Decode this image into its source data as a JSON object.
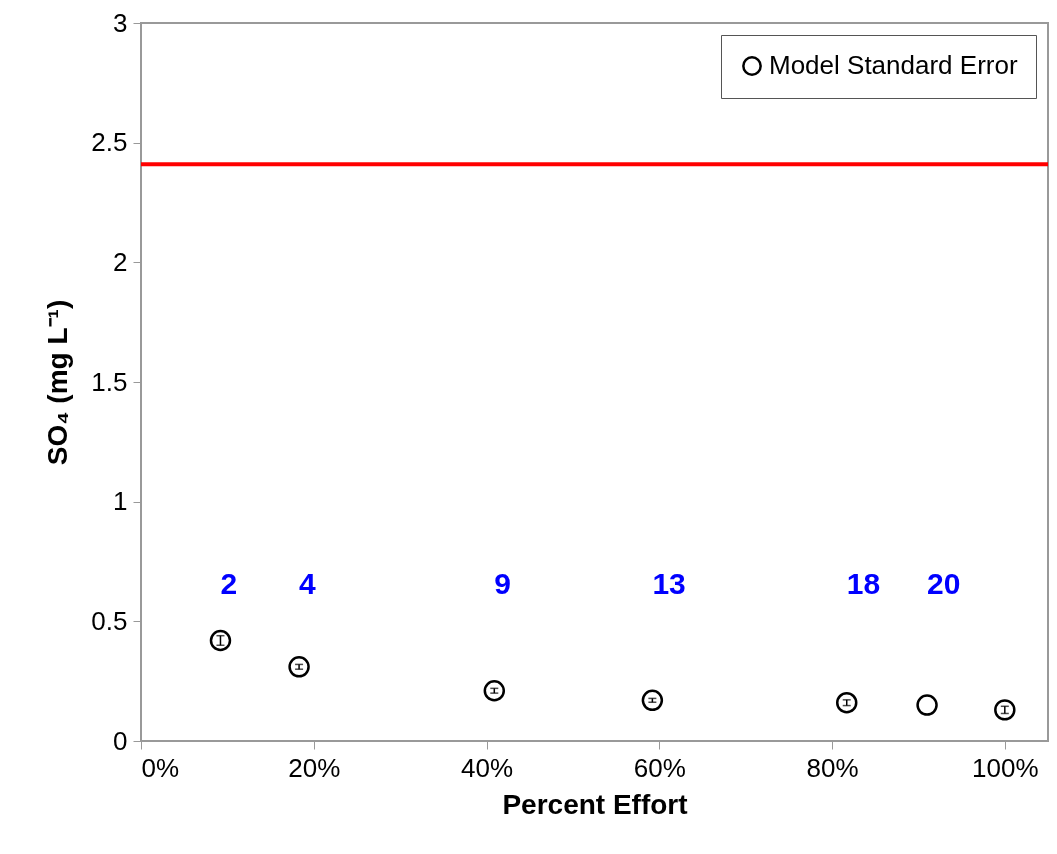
{
  "chart_data": {
    "type": "scatter",
    "xlabel": "Percent Effort",
    "ylabel": "SO₄ (mg L⁻¹)",
    "x": [
      9.2,
      18.3,
      40.9,
      59.2,
      81.7,
      91.0,
      100
    ],
    "series": [
      {
        "name": "Model Standard Error",
        "color": "#000000",
        "values": [
          0.42,
          0.31,
          0.21,
          0.17,
          0.16,
          0.15,
          0.13
        ],
        "errors": [
          0.02,
          0.01,
          0.01,
          0.008,
          0.012,
          null,
          0.015
        ]
      }
    ],
    "annotations": [
      "2",
      "4",
      "9",
      "13",
      "18",
      "20"
    ],
    "xlim": [
      0,
      105
    ],
    "xticks": [
      {
        "value": 0,
        "label": "0%"
      },
      {
        "value": 20,
        "label": "20%"
      },
      {
        "value": 40,
        "label": "40%"
      },
      {
        "value": 60,
        "label": "60%"
      },
      {
        "value": 80,
        "label": "80%"
      },
      {
        "value": 100,
        "label": "100%"
      }
    ],
    "ylim": [
      0,
      3
    ],
    "yticks": [
      0,
      0.5,
      1,
      1.5,
      2,
      2.5,
      3
    ],
    "ref_lines": [
      {
        "axis": "y",
        "value": 2.41,
        "color": "#ff0000"
      }
    ],
    "marker": "circle",
    "legend": "top right",
    "grid": false
  }
}
